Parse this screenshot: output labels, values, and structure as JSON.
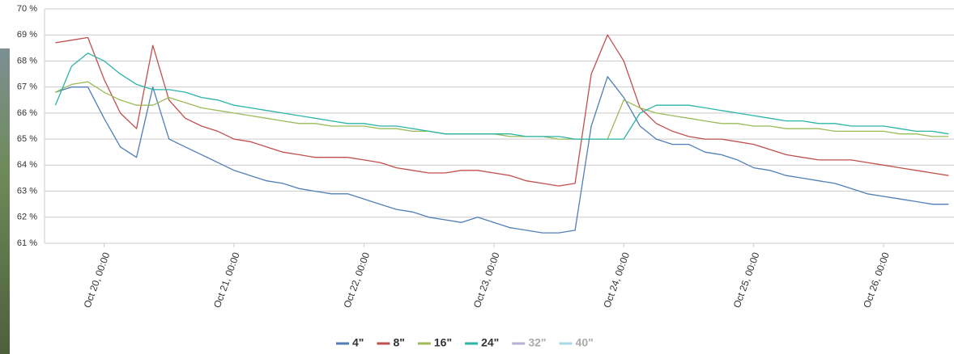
{
  "chart_data": {
    "type": "line",
    "x": [
      "Oct 19, 15:00",
      "Oct 19, 18:00",
      "Oct 19, 21:00",
      "Oct 20, 00:00",
      "Oct 20, 03:00",
      "Oct 20, 06:00",
      "Oct 20, 09:00",
      "Oct 20, 12:00",
      "Oct 20, 15:00",
      "Oct 20, 18:00",
      "Oct 20, 21:00",
      "Oct 21, 00:00",
      "Oct 21, 03:00",
      "Oct 21, 06:00",
      "Oct 21, 09:00",
      "Oct 21, 12:00",
      "Oct 21, 15:00",
      "Oct 21, 18:00",
      "Oct 21, 21:00",
      "Oct 22, 00:00",
      "Oct 22, 03:00",
      "Oct 22, 06:00",
      "Oct 22, 09:00",
      "Oct 22, 12:00",
      "Oct 22, 15:00",
      "Oct 22, 18:00",
      "Oct 22, 21:00",
      "Oct 23, 00:00",
      "Oct 23, 03:00",
      "Oct 23, 06:00",
      "Oct 23, 09:00",
      "Oct 23, 12:00",
      "Oct 23, 15:00",
      "Oct 23, 18:00",
      "Oct 23, 21:00",
      "Oct 24, 00:00",
      "Oct 24, 03:00",
      "Oct 24, 06:00",
      "Oct 24, 09:00",
      "Oct 24, 12:00",
      "Oct 24, 15:00",
      "Oct 24, 18:00",
      "Oct 24, 21:00",
      "Oct 25, 00:00",
      "Oct 25, 03:00",
      "Oct 25, 06:00",
      "Oct 25, 09:00",
      "Oct 25, 12:00",
      "Oct 25, 15:00",
      "Oct 25, 18:00",
      "Oct 25, 21:00",
      "Oct 26, 00:00",
      "Oct 26, 03:00",
      "Oct 26, 06:00",
      "Oct 26, 09:00",
      "Oct 26, 12:00"
    ],
    "series": [
      {
        "name": "4\"",
        "color": "#4f7fb5",
        "values": [
          66.8,
          67.0,
          67.0,
          65.8,
          64.7,
          64.3,
          67.0,
          65.0,
          64.7,
          64.4,
          64.1,
          63.8,
          63.6,
          63.4,
          63.3,
          63.1,
          63.0,
          62.9,
          62.9,
          62.7,
          62.5,
          62.3,
          62.2,
          62.0,
          61.9,
          61.8,
          62.0,
          61.8,
          61.6,
          61.5,
          61.4,
          61.4,
          61.5,
          65.5,
          67.4,
          66.6,
          65.5,
          65.0,
          64.8,
          64.8,
          64.5,
          64.4,
          64.2,
          63.9,
          63.8,
          63.6,
          63.5,
          63.4,
          63.3,
          63.1,
          62.9,
          62.8,
          62.7,
          62.6,
          62.5,
          62.5
        ]
      },
      {
        "name": "8\"",
        "color": "#c0504d",
        "values": [
          68.7,
          68.8,
          68.9,
          67.3,
          66.0,
          65.4,
          68.6,
          66.5,
          65.8,
          65.5,
          65.3,
          65.0,
          64.9,
          64.7,
          64.5,
          64.4,
          64.3,
          64.3,
          64.3,
          64.2,
          64.1,
          63.9,
          63.8,
          63.7,
          63.7,
          63.8,
          63.8,
          63.7,
          63.6,
          63.4,
          63.3,
          63.2,
          63.3,
          67.5,
          69.0,
          68.0,
          66.2,
          65.6,
          65.3,
          65.1,
          65.0,
          65.0,
          64.9,
          64.8,
          64.6,
          64.4,
          64.3,
          64.2,
          64.2,
          64.2,
          64.1,
          64.0,
          63.9,
          63.8,
          63.7,
          63.6
        ]
      },
      {
        "name": "16\"",
        "color": "#9bbb59",
        "values": [
          66.8,
          67.1,
          67.2,
          66.8,
          66.5,
          66.3,
          66.3,
          66.6,
          66.4,
          66.2,
          66.1,
          66.0,
          65.9,
          65.8,
          65.7,
          65.6,
          65.6,
          65.5,
          65.5,
          65.5,
          65.4,
          65.4,
          65.3,
          65.3,
          65.2,
          65.2,
          65.2,
          65.2,
          65.1,
          65.1,
          65.1,
          65.0,
          65.0,
          65.0,
          65.0,
          66.5,
          66.2,
          66.0,
          65.9,
          65.8,
          65.7,
          65.6,
          65.6,
          65.5,
          65.5,
          65.4,
          65.4,
          65.4,
          65.3,
          65.3,
          65.3,
          65.3,
          65.2,
          65.2,
          65.1,
          65.1
        ]
      },
      {
        "name": "24\"",
        "color": "#2bb5a6",
        "values": [
          66.3,
          67.8,
          68.3,
          68.0,
          67.5,
          67.1,
          66.9,
          66.9,
          66.8,
          66.6,
          66.5,
          66.3,
          66.2,
          66.1,
          66.0,
          65.9,
          65.8,
          65.7,
          65.6,
          65.6,
          65.5,
          65.5,
          65.4,
          65.3,
          65.2,
          65.2,
          65.2,
          65.2,
          65.2,
          65.1,
          65.1,
          65.1,
          65.0,
          65.0,
          65.0,
          65.0,
          66.0,
          66.3,
          66.3,
          66.3,
          66.2,
          66.1,
          66.0,
          65.9,
          65.8,
          65.7,
          65.7,
          65.6,
          65.6,
          65.5,
          65.5,
          65.5,
          65.4,
          65.3,
          65.3,
          65.2
        ]
      },
      {
        "name": "32\"",
        "color": "#bcaed6",
        "visible": false
      },
      {
        "name": "40\"",
        "color": "#a9d8e6",
        "visible": false
      }
    ],
    "xlim": [
      "Oct 19, 13:00",
      "Oct 26, 13:00"
    ],
    "xticks": [
      "Oct 20, 00:00",
      "Oct 21, 00:00",
      "Oct 22, 00:00",
      "Oct 23, 00:00",
      "Oct 24, 00:00",
      "Oct 25, 00:00",
      "Oct 26, 00:00"
    ],
    "ylim": [
      61,
      70
    ],
    "yticks": [
      {
        "value": 61,
        "label": "61 %"
      },
      {
        "value": 62,
        "label": "62 %"
      },
      {
        "value": 63,
        "label": "63 %"
      },
      {
        "value": 64,
        "label": "64 %"
      },
      {
        "value": 65,
        "label": "65 %"
      },
      {
        "value": 66,
        "label": "66 %"
      },
      {
        "value": 67,
        "label": "67 %"
      },
      {
        "value": 68,
        "label": "68 %"
      },
      {
        "value": 69,
        "label": "69 %"
      },
      {
        "value": 70,
        "label": "70 %"
      }
    ],
    "grid": true
  }
}
